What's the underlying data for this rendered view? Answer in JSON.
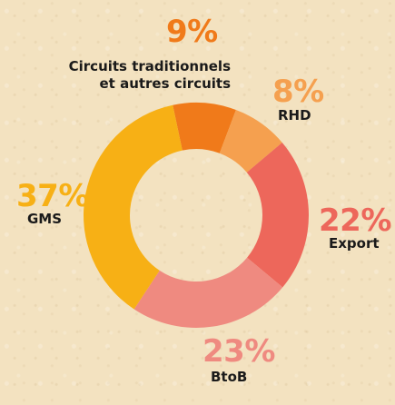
{
  "chart_data": {
    "type": "pie",
    "variant": "donut",
    "title": "",
    "slices": [
      {
        "key": "circuits",
        "label_lines": [
          "Circuits traditionnels",
          "et autres circuits"
        ],
        "value": 9,
        "display": "9%",
        "color": "#f07a1a"
      },
      {
        "key": "rhd",
        "label_lines": [
          "RHD"
        ],
        "value": 8,
        "display": "8%",
        "color": "#f5a04f"
      },
      {
        "key": "export",
        "label_lines": [
          "Export"
        ],
        "value": 22,
        "display": "22%",
        "color": "#ed675b"
      },
      {
        "key": "btob",
        "label_lines": [
          "BtoB"
        ],
        "value": 23,
        "display": "23%",
        "color": "#ef8a80"
      },
      {
        "key": "gms",
        "label_lines": [
          "GMS"
        ],
        "value": 37,
        "display": "37%",
        "color": "#f7b015"
      }
    ],
    "start_angle_deg": -12,
    "direction": "clockwise",
    "legend": "none"
  }
}
